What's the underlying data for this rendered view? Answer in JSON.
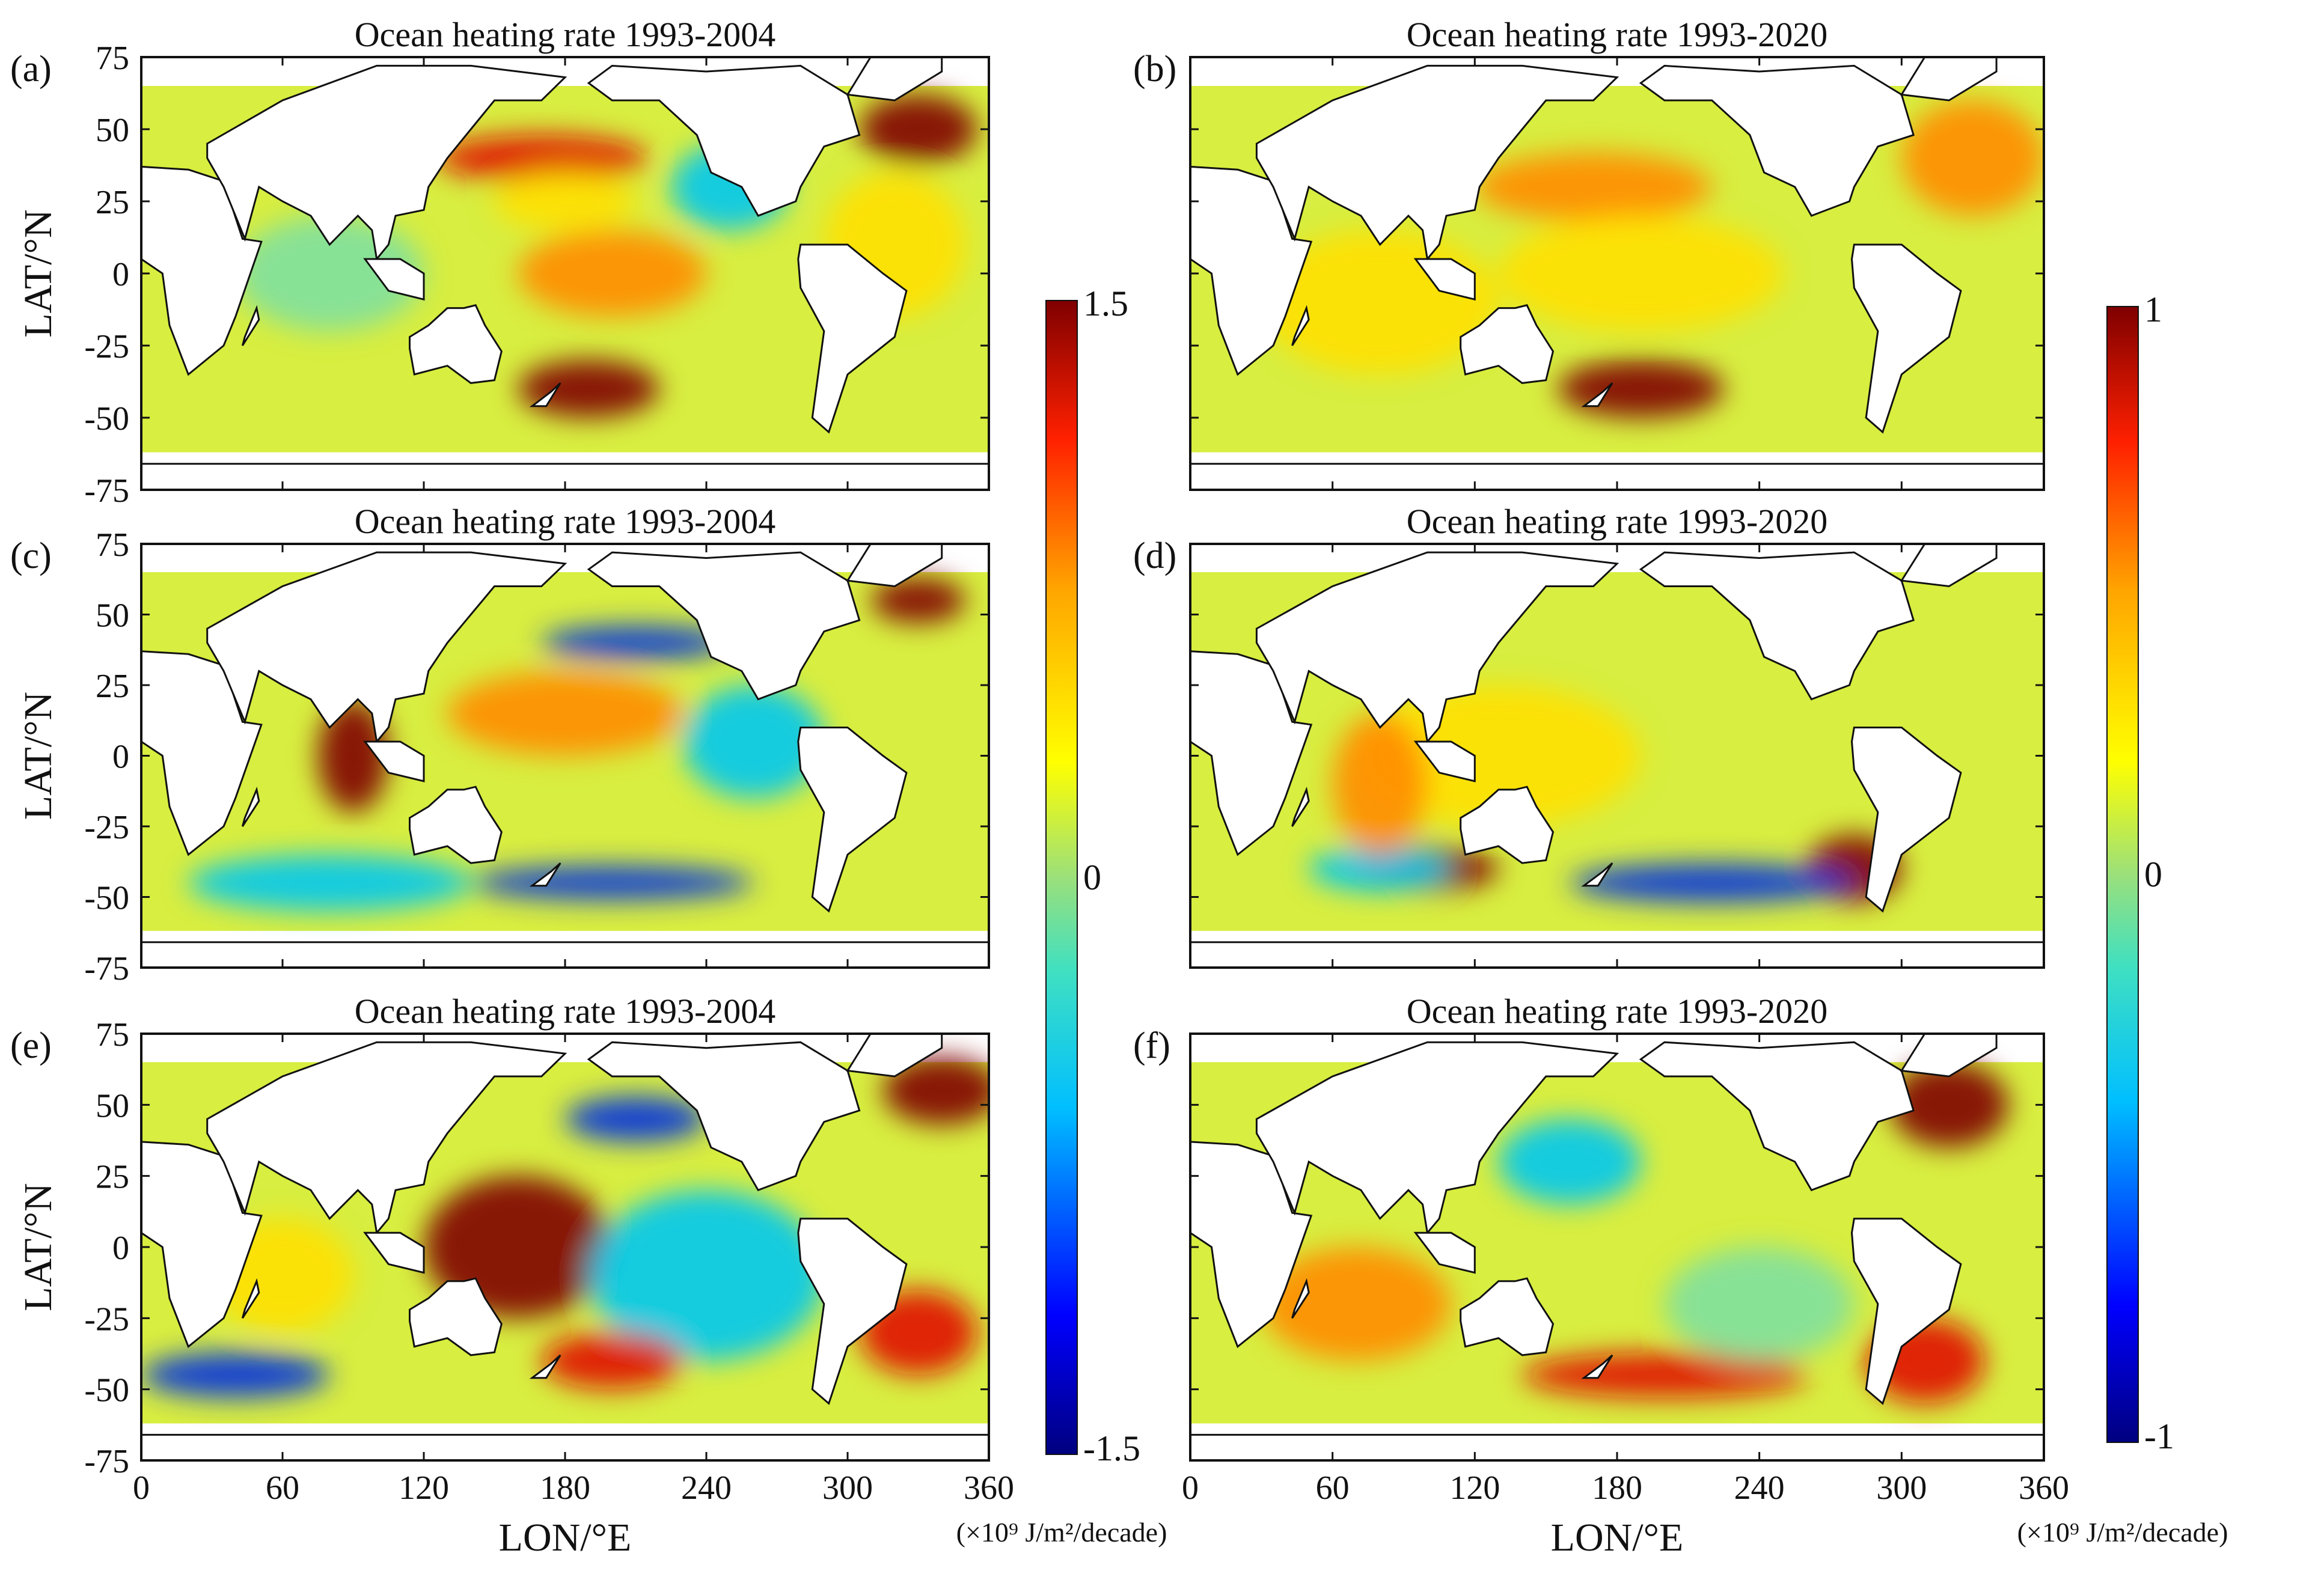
{
  "chart_data": {
    "type": "heatmap",
    "description_labels": {
      "xlabel": "LON/°E",
      "ylabel": "LAT/°N"
    },
    "x_ticks": [
      "0",
      "60",
      "120",
      "180",
      "240",
      "300",
      "360"
    ],
    "y_ticks": [
      "75",
      "50",
      "25",
      "0",
      "-25",
      "-50",
      "-75"
    ],
    "xlim": [
      0,
      360
    ],
    "ylim": [
      -75,
      75
    ],
    "panels": [
      {
        "letter": "(a)",
        "title": "Ocean heating rate 1993-2004",
        "period": "1993-2004",
        "column": "left",
        "row": 1,
        "xlabel_shown": false
      },
      {
        "letter": "(b)",
        "title": "Ocean heating rate 1993-2020",
        "period": "1993-2020",
        "column": "right",
        "row": 1,
        "xlabel_shown": false
      },
      {
        "letter": "(c)",
        "title": "Ocean heating rate 1993-2004",
        "period": "1993-2004",
        "column": "left",
        "row": 2,
        "xlabel_shown": false
      },
      {
        "letter": "(d)",
        "title": "Ocean heating rate 1993-2020",
        "period": "1993-2020",
        "column": "right",
        "row": 2,
        "xlabel_shown": false
      },
      {
        "letter": "(e)",
        "title": "Ocean heating rate 1993-2004",
        "period": "1993-2004",
        "column": "left",
        "row": 3,
        "xlabel_shown": true
      },
      {
        "letter": "(f)",
        "title": "Ocean heating rate 1993-2020",
        "period": "1993-2020",
        "column": "right",
        "row": 3,
        "xlabel_shown": true
      }
    ],
    "colorbars": [
      {
        "range": [
          -1.5,
          1.5
        ],
        "tick_labels": [
          "1.5",
          "0",
          "-1.5"
        ],
        "unit": "(×10⁹ J/m²/decade)"
      },
      {
        "range": [
          -1,
          1
        ],
        "tick_labels": [
          "1",
          "0",
          "-1"
        ],
        "unit": "(×10⁹ J/m²/decade)"
      }
    ],
    "colormap": [
      "#00007f",
      "#0000ff",
      "#00bfff",
      "#40e0c0",
      "#9be07a",
      "#ffff00",
      "#ffa500",
      "#ff2000",
      "#7f0000"
    ],
    "land_color": "#ffffff",
    "contour": "zero-line"
  }
}
